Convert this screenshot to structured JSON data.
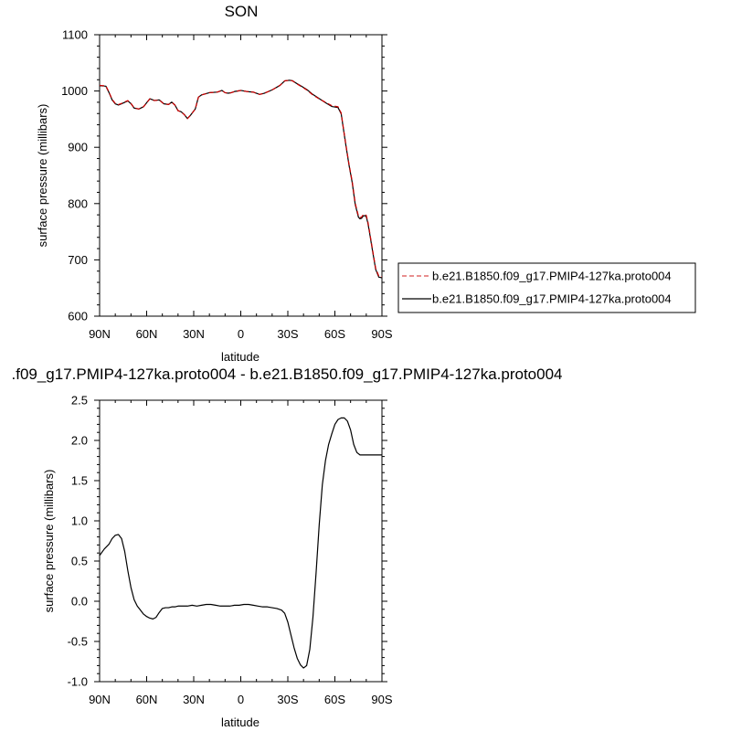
{
  "chart_data": [
    {
      "type": "line",
      "title": "SON",
      "xlabel": "latitude",
      "ylabel": "surface pressure (millibars)",
      "xlim": [
        90,
        -90
      ],
      "ylim": [
        600,
        1100
      ],
      "x_ticks": [
        90,
        60,
        30,
        0,
        -30,
        -60,
        -90
      ],
      "x_tick_labels": [
        "90N",
        "60N",
        "30N",
        "0",
        "30S",
        "60S",
        "90S"
      ],
      "y_ticks": [
        600,
        700,
        800,
        900,
        1000,
        1100
      ],
      "y_tick_labels": [
        "600",
        "700",
        "800",
        "900",
        "1000",
        "1100"
      ],
      "legend": {
        "placement": "right"
      },
      "grid": false,
      "series": [
        {
          "name": "b.e21.B1850.f09_g17.PMIP4-127ka.proto004",
          "color": "#cc0000",
          "dash": "dashed",
          "x": [
            90,
            86,
            84,
            82,
            80,
            78,
            76,
            72,
            70,
            68,
            65,
            62,
            58,
            55,
            52,
            49,
            46,
            44,
            42,
            40,
            38,
            36,
            34,
            32,
            29,
            27,
            25,
            20,
            15,
            12,
            10,
            8,
            6,
            4,
            2,
            0,
            -4,
            -8,
            -12,
            -15,
            -20,
            -25,
            -28,
            -31,
            -33,
            -35,
            -38,
            -42,
            -46,
            -50,
            -54,
            -58,
            -62,
            -64,
            -65,
            -67,
            -69,
            -71,
            -73,
            -75,
            -76,
            -77,
            -78,
            -79,
            -80,
            -81,
            -82,
            -84,
            -86,
            -88,
            -90
          ],
          "values": [
            1010,
            1009,
            998,
            985,
            978,
            976,
            978,
            983,
            978,
            970,
            968,
            972,
            986,
            983,
            984,
            977,
            976,
            980,
            975,
            965,
            963,
            958,
            951,
            957,
            968,
            989,
            993,
            997,
            998,
            1001,
            997,
            996,
            997,
            999,
            1000,
            1001,
            999,
            998,
            994,
            996,
            1002,
            1010,
            1018,
            1019,
            1018,
            1014,
            1009,
            1002,
            993,
            986,
            980,
            974,
            972,
            961,
            942,
            905,
            870,
            840,
            800,
            778,
            775,
            776,
            780,
            781,
            779,
            768,
            752,
            718,
            685,
            671,
            670
          ]
        },
        {
          "name": "b.e21.B1850.f09_g17.PMIP4-127ka.proto004",
          "color": "#000000",
          "dash": "solid",
          "x": [
            90,
            86,
            84,
            82,
            80,
            78,
            76,
            72,
            70,
            68,
            65,
            62,
            58,
            55,
            52,
            49,
            46,
            44,
            42,
            40,
            38,
            36,
            34,
            32,
            29,
            27,
            25,
            20,
            15,
            12,
            10,
            8,
            6,
            4,
            2,
            0,
            -4,
            -8,
            -12,
            -15,
            -20,
            -25,
            -28,
            -31,
            -33,
            -35,
            -38,
            -42,
            -46,
            -50,
            -54,
            -58,
            -62,
            -64,
            -65,
            -67,
            -69,
            -71,
            -73,
            -75,
            -76,
            -77,
            -78,
            -79,
            -80,
            -81,
            -82,
            -84,
            -86,
            -88,
            -90
          ],
          "values": [
            1009.4,
            1008.6,
            997.2,
            984.2,
            977.2,
            975.2,
            977.3,
            982.4,
            977.5,
            969.7,
            968.0,
            972.1,
            986.2,
            983.2,
            984.2,
            977.2,
            976.2,
            980.2,
            975.2,
            965.2,
            963.1,
            958.1,
            951.1,
            957.1,
            968.1,
            989.1,
            993.1,
            997.1,
            998.0,
            1001.0,
            997.0,
            996.1,
            997.1,
            999.1,
            1000.0,
            1001.1,
            999.0,
            998.0,
            994.0,
            996.0,
            1002.0,
            1010.0,
            1018.0,
            1019.1,
            1018.3,
            1014.5,
            1009.7,
            1002.8,
            993.8,
            986.5,
            979.2,
            972.5,
            970.6,
            959.7,
            940.8,
            903.7,
            868.4,
            838.0,
            797.8,
            776.0,
            772.9,
            773.8,
            777.8,
            778.7,
            776.7,
            765.8,
            749.9,
            716.0,
            683.1,
            669.3,
            668.2
          ]
        }
      ]
    },
    {
      "type": "line",
      "title": ".f09_g17.PMIP4-127ka.proto004 - b.e21.B1850.f09_g17.PMIP4-127ka.proto004",
      "xlabel": "latitude",
      "ylabel": "surface pressure (millibars)",
      "xlim": [
        90,
        -90
      ],
      "ylim": [
        -1.0,
        2.5
      ],
      "x_ticks": [
        90,
        60,
        30,
        0,
        -30,
        -60,
        -90
      ],
      "x_tick_labels": [
        "90N",
        "60N",
        "30N",
        "0",
        "30S",
        "60S",
        "90S"
      ],
      "y_ticks": [
        -1.0,
        -0.5,
        0.0,
        0.5,
        1.0,
        1.5,
        2.0,
        2.5
      ],
      "y_tick_labels": [
        "-1.0",
        "-0.5",
        "0.0",
        "0.5",
        "1.0",
        "1.5",
        "2.0",
        "2.5"
      ],
      "grid": false,
      "series": [
        {
          "color": "#000000",
          "dash": "solid",
          "x": [
            90,
            87,
            84,
            82,
            80,
            78,
            76,
            74,
            72,
            70,
            68,
            66,
            64,
            62,
            60,
            58,
            56,
            54,
            52,
            50,
            48,
            46,
            44,
            42,
            40,
            37,
            34,
            31,
            28,
            25,
            22,
            19,
            16,
            13,
            10,
            7,
            4,
            1,
            -2,
            -5,
            -8,
            -11,
            -14,
            -17,
            -20,
            -23,
            -26,
            -28,
            -30,
            -32,
            -34,
            -36,
            -38,
            -40,
            -42,
            -44,
            -46,
            -48,
            -50,
            -52,
            -54,
            -56,
            -58,
            -60,
            -62,
            -64,
            -66,
            -68,
            -70,
            -72,
            -74,
            -76,
            -78,
            -80,
            -82,
            -84,
            -86,
            -88,
            -90
          ],
          "values": [
            0.57,
            0.65,
            0.71,
            0.78,
            0.82,
            0.83,
            0.78,
            0.62,
            0.38,
            0.17,
            0.02,
            -0.06,
            -0.11,
            -0.16,
            -0.19,
            -0.21,
            -0.22,
            -0.2,
            -0.14,
            -0.09,
            -0.08,
            -0.08,
            -0.07,
            -0.07,
            -0.06,
            -0.06,
            -0.06,
            -0.05,
            -0.06,
            -0.05,
            -0.04,
            -0.04,
            -0.05,
            -0.06,
            -0.06,
            -0.06,
            -0.05,
            -0.05,
            -0.04,
            -0.04,
            -0.05,
            -0.06,
            -0.07,
            -0.07,
            -0.08,
            -0.09,
            -0.11,
            -0.15,
            -0.26,
            -0.42,
            -0.58,
            -0.71,
            -0.79,
            -0.83,
            -0.8,
            -0.6,
            -0.2,
            0.35,
            0.95,
            1.45,
            1.75,
            1.95,
            2.08,
            2.2,
            2.26,
            2.28,
            2.28,
            2.24,
            2.13,
            1.95,
            1.85,
            1.82,
            1.82,
            1.82,
            1.82,
            1.82,
            1.82,
            1.82,
            1.82
          ]
        }
      ]
    }
  ]
}
